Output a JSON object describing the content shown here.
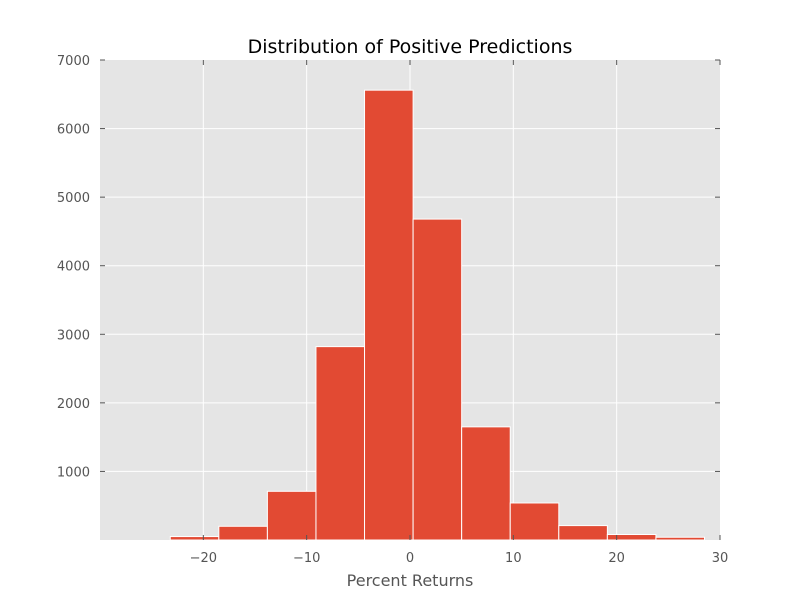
{
  "chart_data": {
    "type": "bar",
    "title": "Distribution of Positive Predictions",
    "xlabel": "Percent Returns",
    "ylabel": "",
    "xlim": [
      -30,
      30
    ],
    "ylim": [
      0,
      7000
    ],
    "xticks": [
      -20,
      -10,
      0,
      10,
      20,
      30
    ],
    "xtick_labels": [
      "−20",
      "−10",
      "0",
      "10",
      "20",
      "30"
    ],
    "yticks": [
      1000,
      2000,
      3000,
      4000,
      5000,
      6000,
      7000
    ],
    "ytick_labels": [
      "1000",
      "2000",
      "3000",
      "4000",
      "5000",
      "6000",
      "7000"
    ],
    "grid": true,
    "bins": [
      {
        "x0": -23.2,
        "x1": -18.5,
        "count": 50
      },
      {
        "x0": -18.5,
        "x1": -13.8,
        "count": 200
      },
      {
        "x0": -13.8,
        "x1": -9.1,
        "count": 710
      },
      {
        "x0": -9.1,
        "x1": -4.4,
        "count": 2820
      },
      {
        "x0": -4.4,
        "x1": 0.3,
        "count": 6560
      },
      {
        "x0": 0.3,
        "x1": 5.0,
        "count": 4680
      },
      {
        "x0": 5.0,
        "x1": 9.7,
        "count": 1650
      },
      {
        "x0": 9.7,
        "x1": 14.4,
        "count": 540
      },
      {
        "x0": 14.4,
        "x1": 19.1,
        "count": 210
      },
      {
        "x0": 19.1,
        "x1": 23.8,
        "count": 80
      },
      {
        "x0": 23.8,
        "x1": 28.5,
        "count": 40
      }
    ],
    "colors": {
      "bar": "#E24A33",
      "background": "#E5E5E5",
      "grid": "#FFFFFF",
      "tick_text": "#555555",
      "title_text": "#000000"
    }
  }
}
